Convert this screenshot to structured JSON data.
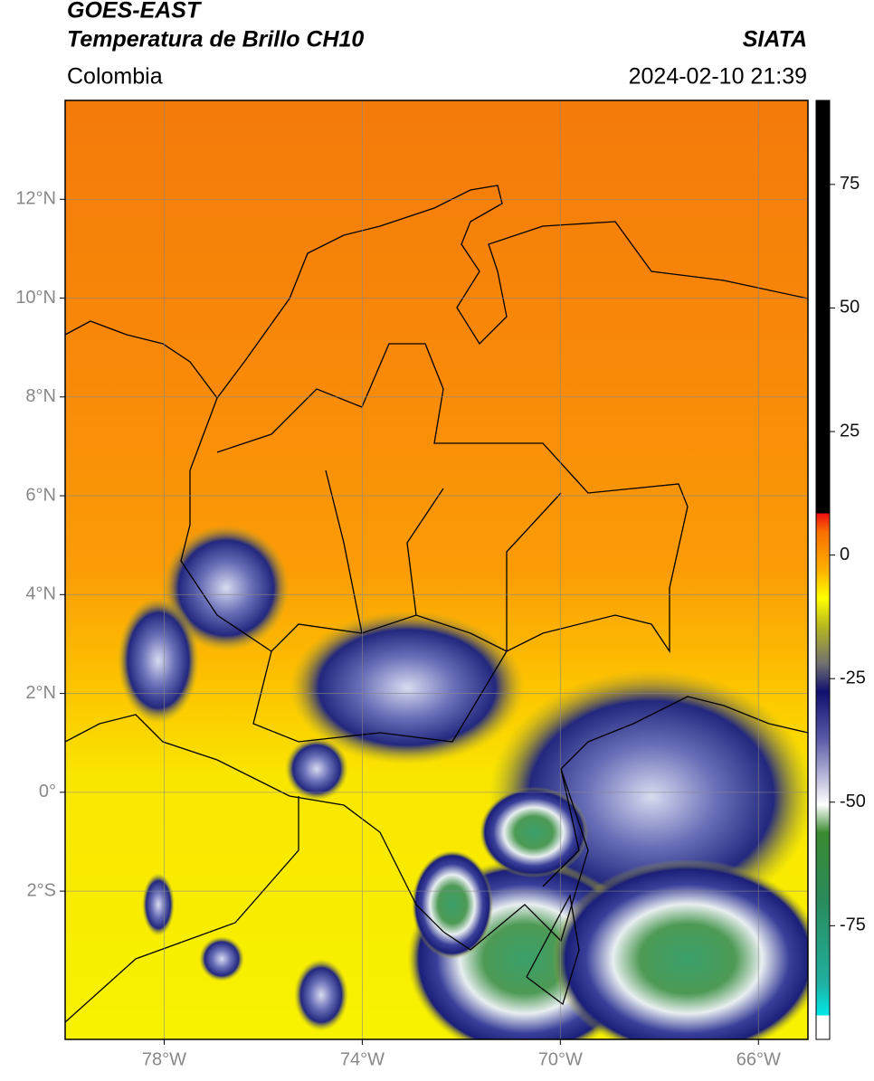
{
  "header": {
    "title": "GOES-EAST",
    "subtitle": "Temperatura de Brillo CH10",
    "region": "Colombia",
    "source": "SIATA",
    "datetime": "2024-02-10 21:39"
  },
  "map": {
    "xlim": [
      -80,
      -65
    ],
    "ylim": [
      -5,
      14
    ],
    "xticks": [
      {
        "value": -78,
        "label": "78°W"
      },
      {
        "value": -74,
        "label": "74°W"
      },
      {
        "value": -70,
        "label": "70°W"
      },
      {
        "value": -66,
        "label": "66°W"
      }
    ],
    "yticks": [
      {
        "value": 12,
        "label": "12°N"
      },
      {
        "value": 10,
        "label": "10°N"
      },
      {
        "value": 8,
        "label": "8°N"
      },
      {
        "value": 6,
        "label": "6°N"
      },
      {
        "value": 4,
        "label": "4°N"
      },
      {
        "value": 2,
        "label": "2°N"
      },
      {
        "value": 0,
        "label": "0°"
      },
      {
        "value": -2,
        "label": "2°S"
      }
    ],
    "grid": true
  },
  "colorbar": {
    "ylim": [
      -98,
      92
    ],
    "yticks": [
      75,
      50,
      25,
      0,
      -25,
      -50,
      -75
    ]
  }
}
